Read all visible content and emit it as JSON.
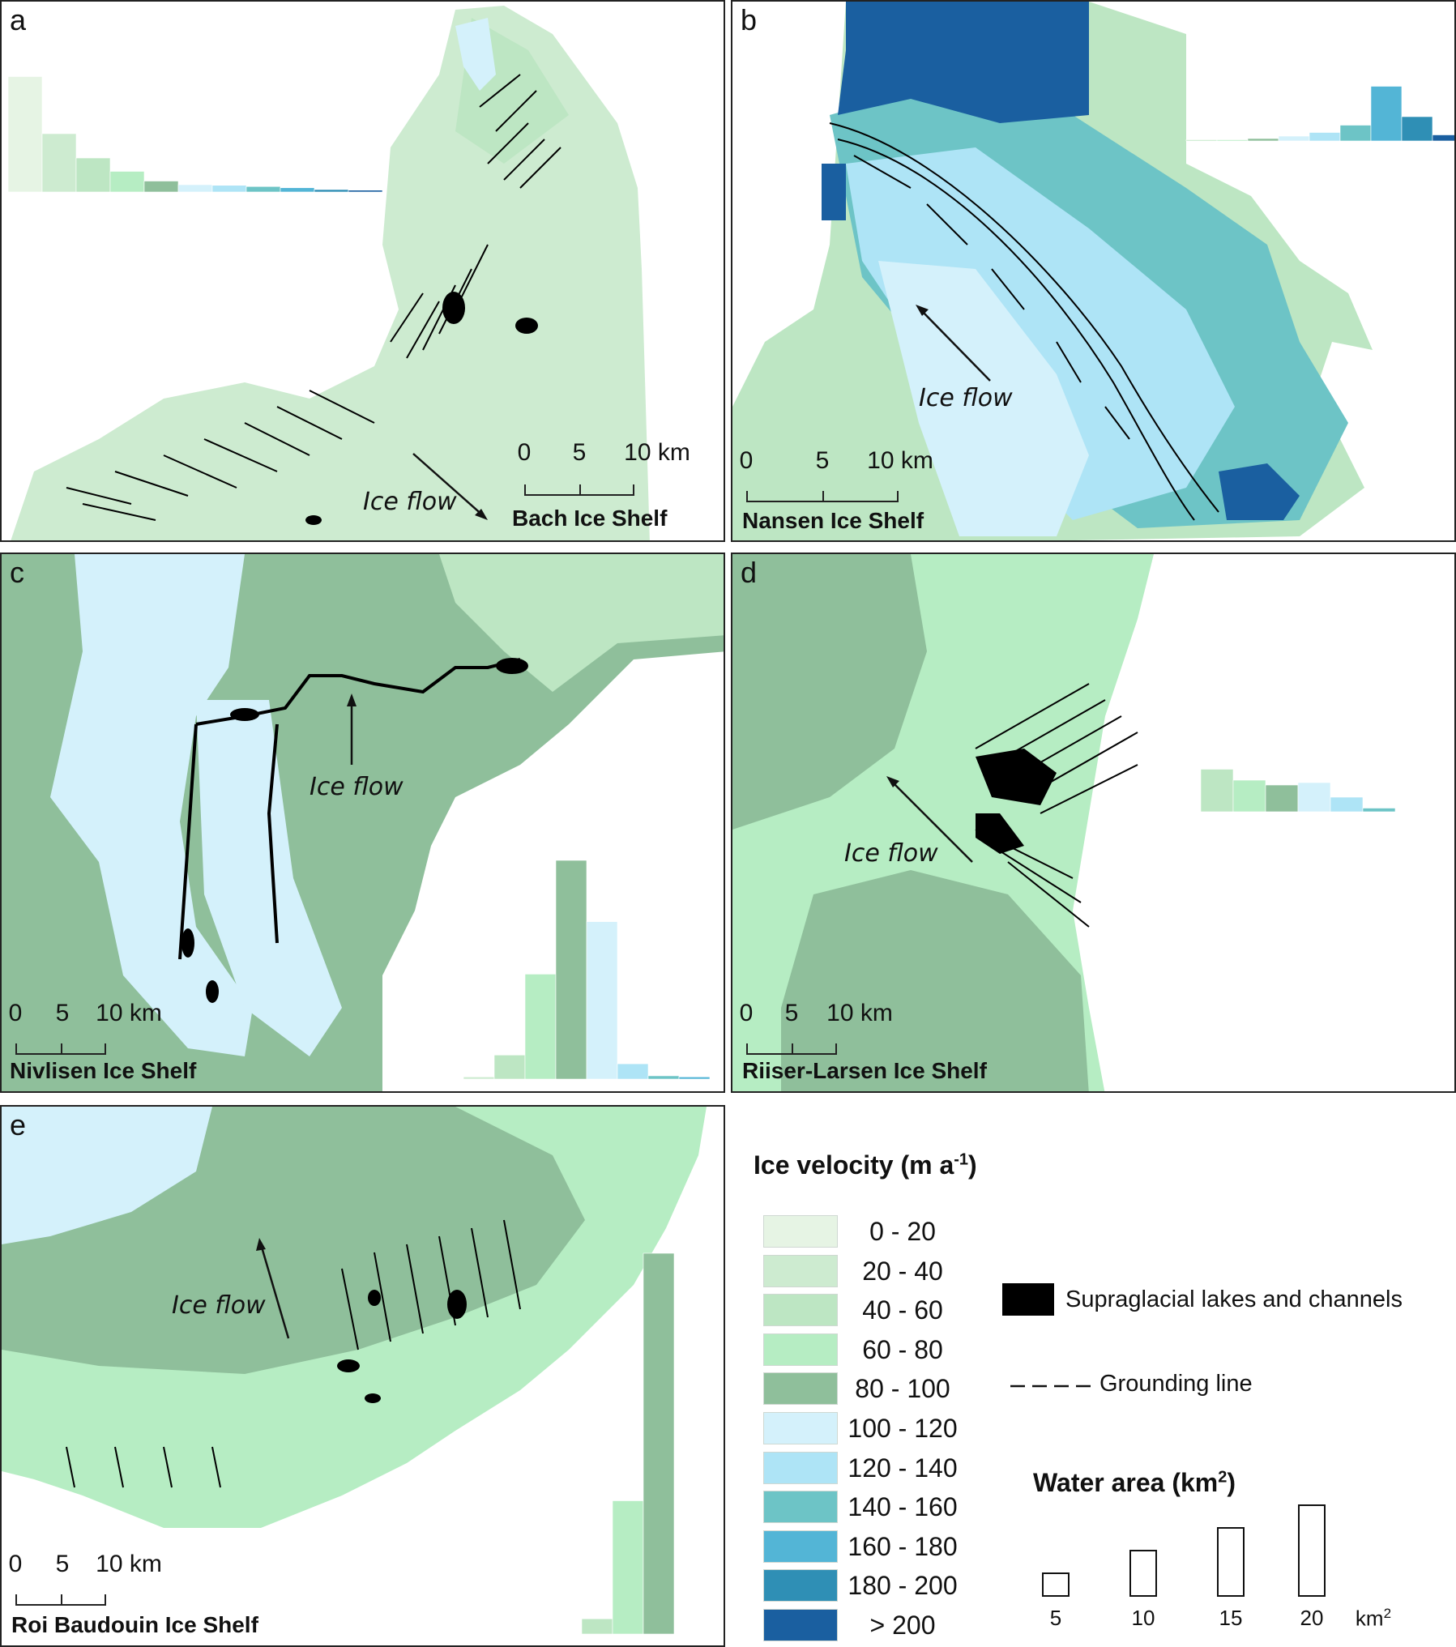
{
  "figure": {
    "panels": [
      {
        "id": "a",
        "letter": "a",
        "shelf": "Bach Ice Shelf",
        "flow_label": "Ice flow",
        "scale_ticks": [
          "0",
          "5",
          "10 km"
        ],
        "histogram": [
          0.95,
          0.48,
          0.28,
          0.17,
          0.09,
          0.06,
          0.055,
          0.045,
          0.035,
          0.02,
          0.015
        ]
      },
      {
        "id": "b",
        "letter": "b",
        "shelf": "Nansen Ice Shelf",
        "flow_label": "Ice flow",
        "scale_ticks": [
          "0",
          "5",
          "10 km"
        ],
        "histogram": [
          0,
          0,
          0.02,
          0.04,
          0.07,
          0.13,
          0.45,
          0.2,
          0.05,
          0.015
        ]
      },
      {
        "id": "c",
        "letter": "c",
        "shelf": "Nivlisen Ice Shelf",
        "flow_label": "Ice flow",
        "scale_ticks": [
          "0",
          "5",
          "10 km"
        ],
        "histogram": [
          0.01,
          0.11,
          0.48,
          1.0,
          0.72,
          0.07,
          0.015,
          0.01
        ]
      },
      {
        "id": "d",
        "letter": "d",
        "shelf": "Riiser-Larsen Ice Shelf",
        "flow_label": "Ice flow",
        "scale_ticks": [
          "0",
          "5",
          "10 km"
        ],
        "histogram": [
          0.35,
          0.26,
          0.22,
          0.24,
          0.12,
          0.03
        ]
      },
      {
        "id": "e",
        "letter": "e",
        "shelf": "Roi Baudouin Ice Shelf",
        "flow_label": "Ice flow",
        "scale_ticks": [
          "0",
          "5",
          "10 km"
        ],
        "histogram": [
          0.04,
          0.35,
          1.0
        ]
      }
    ]
  },
  "legend": {
    "velocity_title": "Ice velocity (m a",
    "velocity_title_sup": "-1",
    "velocity_title_end": ")",
    "velocity_classes": [
      {
        "label": "0 - 20",
        "color": "#e6f4e4"
      },
      {
        "label": "20 - 40",
        "color": "#cdebd0"
      },
      {
        "label": "40 - 60",
        "color": "#bde6c3"
      },
      {
        "label": "60 - 80",
        "color": "#b6edc3"
      },
      {
        "label": "80 - 100",
        "color": "#8fbf9b"
      },
      {
        "label": "100 - 120",
        "color": "#d4f1fb"
      },
      {
        "label": "120 - 140",
        "color": "#aee4f6"
      },
      {
        "label": "140 - 160",
        "color": "#6dc4c6"
      },
      {
        "label": "160 - 180",
        "color": "#53b5d6"
      },
      {
        "label": "180 - 200",
        "color": "#2f8fb5"
      },
      {
        "label": "> 200",
        "color": "#1a5fa0"
      }
    ],
    "lakes_label": "Supraglacial lakes and channels",
    "grounding_label": "Grounding line",
    "water_title": "Water area (km",
    "water_title_sup": "2",
    "water_title_end": ")",
    "water_sizes": [
      "5",
      "10",
      "15",
      "20"
    ],
    "water_unit": "km",
    "water_unit_sup": "2"
  }
}
